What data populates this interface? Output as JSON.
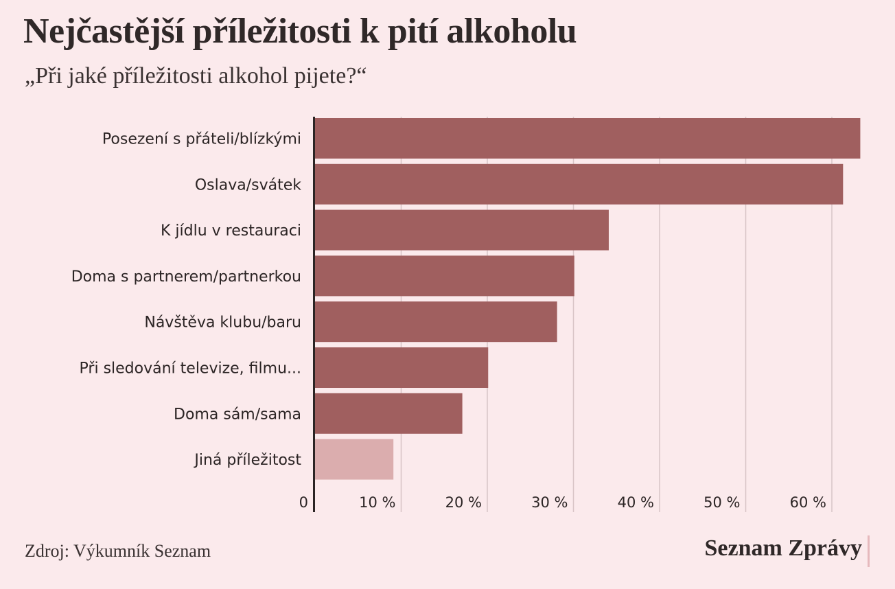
{
  "header": {
    "title": "Nejčastější příležitosti k pití alkoholu",
    "subtitle": "„Při jaké příležitosti alkohol pijete?“"
  },
  "footer": {
    "source": "Zdroj: Výkumník Seznam",
    "brand": "Seznam Zprávy"
  },
  "colors": {
    "bar": "#a05f5f",
    "bar_other": "#dbadae",
    "grid": "#d8c4c6",
    "axis": "#2b2424",
    "background": "#fbeaec"
  },
  "chart_data": {
    "type": "bar",
    "orientation": "horizontal",
    "categories": [
      "Posezení s přáteli/blízkými",
      "Oslava/svátek",
      "K jídlu v restauraci",
      "Doma s partnerem/partnerkou",
      "Návštěva klubu/baru",
      "Při sledování televize, filmu...",
      "Doma sám/sama",
      "Jiná příležitost"
    ],
    "values": [
      63.3,
      61.3,
      34.1,
      30.1,
      28.1,
      20.1,
      17.1,
      9.1
    ],
    "highlight": [
      false,
      false,
      false,
      false,
      false,
      false,
      false,
      true
    ],
    "xlim": [
      0,
      65
    ],
    "xticks": [
      0,
      10,
      20,
      30,
      40,
      50,
      60
    ],
    "xtick_labels": [
      "0",
      "10 %",
      "20 %",
      "30 %",
      "40 %",
      "50 %",
      "60 %"
    ],
    "grid": true,
    "xlabel": "",
    "ylabel": ""
  }
}
